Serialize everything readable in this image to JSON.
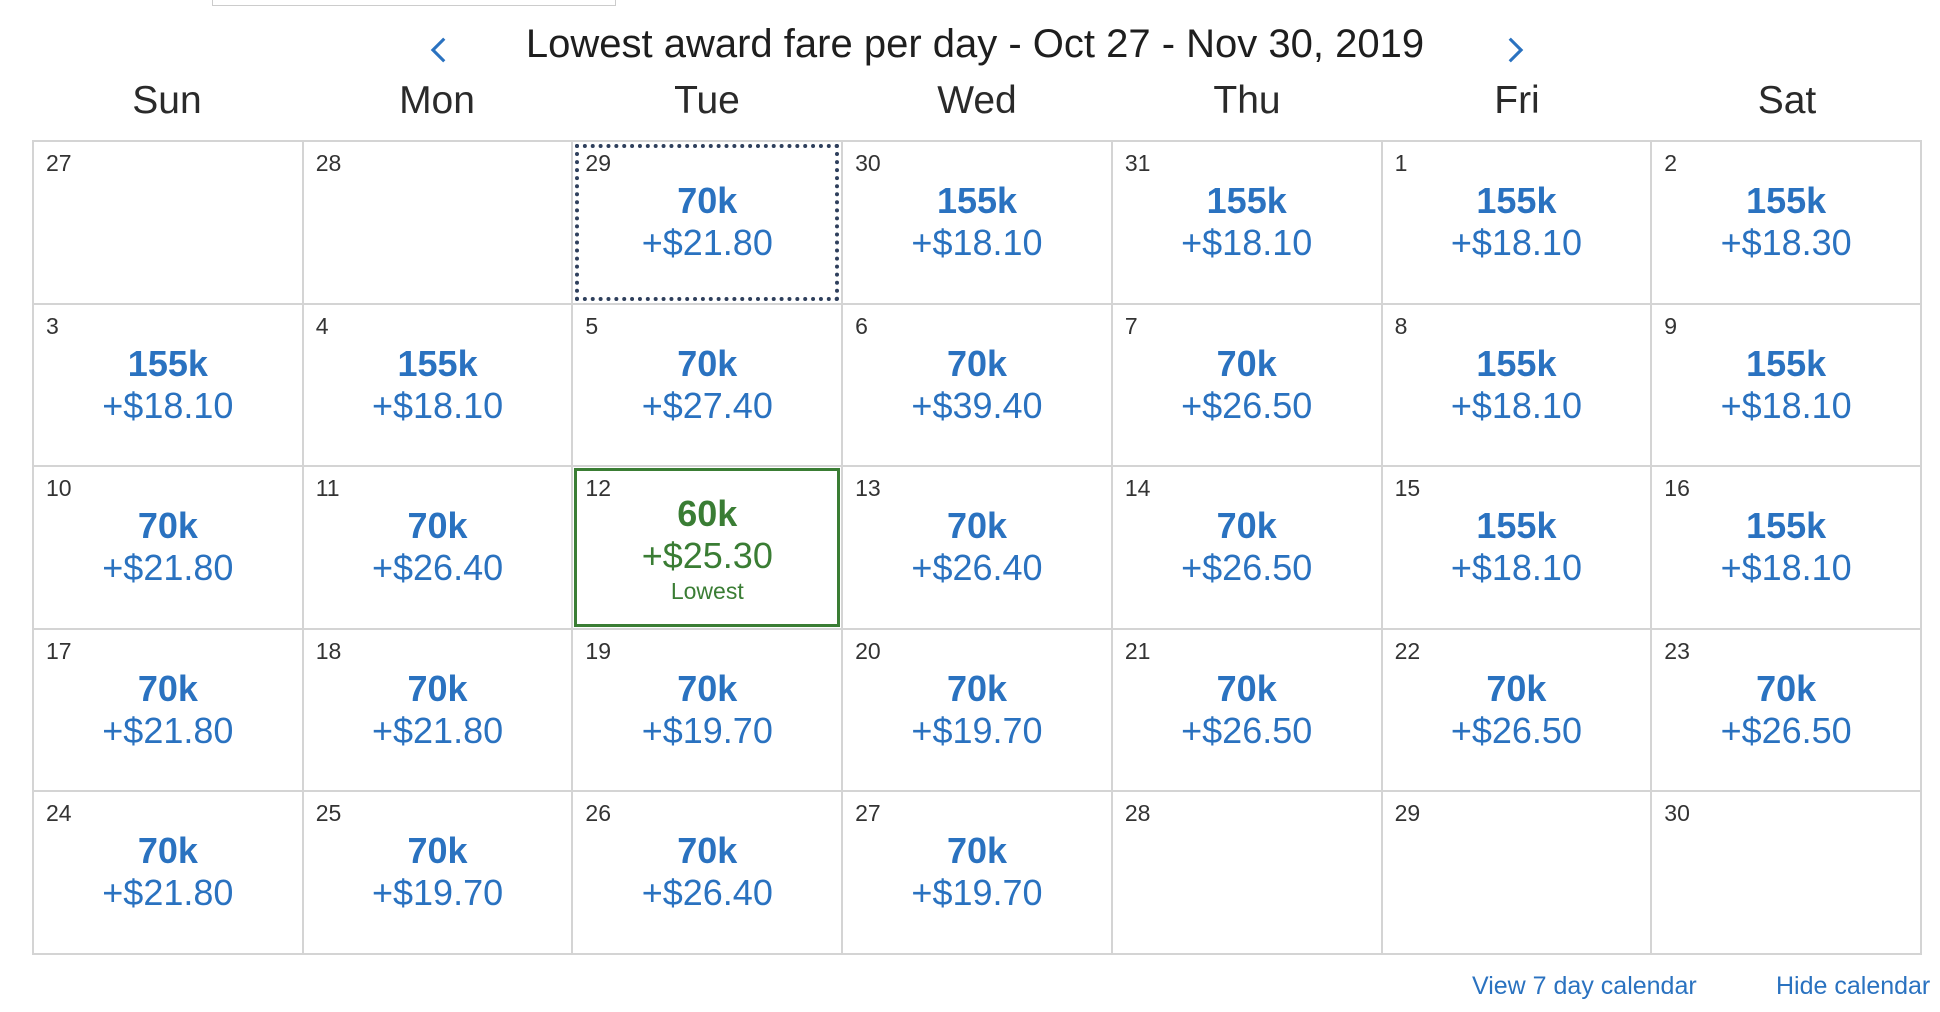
{
  "header": {
    "title": "Lowest award fare per day - Oct 27 - Nov 30, 2019",
    "prev_icon": "chevron-left-icon",
    "next_icon": "chevron-right-icon"
  },
  "weekdays": [
    "Sun",
    "Mon",
    "Tue",
    "Wed",
    "Thu",
    "Fri",
    "Sat"
  ],
  "lowest_label": "Lowest",
  "days": [
    {
      "day": "27",
      "miles": "",
      "tax": ""
    },
    {
      "day": "28",
      "miles": "",
      "tax": ""
    },
    {
      "day": "29",
      "miles": "70k",
      "tax": "+$21.80",
      "selected": true
    },
    {
      "day": "30",
      "miles": "155k",
      "tax": "+$18.10"
    },
    {
      "day": "31",
      "miles": "155k",
      "tax": "+$18.10"
    },
    {
      "day": "1",
      "miles": "155k",
      "tax": "+$18.10"
    },
    {
      "day": "2",
      "miles": "155k",
      "tax": "+$18.30"
    },
    {
      "day": "3",
      "miles": "155k",
      "tax": "+$18.10"
    },
    {
      "day": "4",
      "miles": "155k",
      "tax": "+$18.10"
    },
    {
      "day": "5",
      "miles": "70k",
      "tax": "+$27.40"
    },
    {
      "day": "6",
      "miles": "70k",
      "tax": "+$39.40"
    },
    {
      "day": "7",
      "miles": "70k",
      "tax": "+$26.50"
    },
    {
      "day": "8",
      "miles": "155k",
      "tax": "+$18.10"
    },
    {
      "day": "9",
      "miles": "155k",
      "tax": "+$18.10"
    },
    {
      "day": "10",
      "miles": "70k",
      "tax": "+$21.80"
    },
    {
      "day": "11",
      "miles": "70k",
      "tax": "+$26.40"
    },
    {
      "day": "12",
      "miles": "60k",
      "tax": "+$25.30",
      "lowest": true
    },
    {
      "day": "13",
      "miles": "70k",
      "tax": "+$26.40"
    },
    {
      "day": "14",
      "miles": "70k",
      "tax": "+$26.50"
    },
    {
      "day": "15",
      "miles": "155k",
      "tax": "+$18.10"
    },
    {
      "day": "16",
      "miles": "155k",
      "tax": "+$18.10"
    },
    {
      "day": "17",
      "miles": "70k",
      "tax": "+$21.80"
    },
    {
      "day": "18",
      "miles": "70k",
      "tax": "+$21.80"
    },
    {
      "day": "19",
      "miles": "70k",
      "tax": "+$19.70"
    },
    {
      "day": "20",
      "miles": "70k",
      "tax": "+$19.70"
    },
    {
      "day": "21",
      "miles": "70k",
      "tax": "+$26.50"
    },
    {
      "day": "22",
      "miles": "70k",
      "tax": "+$26.50"
    },
    {
      "day": "23",
      "miles": "70k",
      "tax": "+$26.50"
    },
    {
      "day": "24",
      "miles": "70k",
      "tax": "+$21.80"
    },
    {
      "day": "25",
      "miles": "70k",
      "tax": "+$19.70"
    },
    {
      "day": "26",
      "miles": "70k",
      "tax": "+$26.40"
    },
    {
      "day": "27",
      "miles": "70k",
      "tax": "+$19.70"
    },
    {
      "day": "28",
      "miles": "",
      "tax": ""
    },
    {
      "day": "29",
      "miles": "",
      "tax": ""
    },
    {
      "day": "30",
      "miles": "",
      "tax": ""
    }
  ],
  "footer": {
    "view_7_day": "View 7 day calendar",
    "hide_calendar": "Hide calendar"
  },
  "colors": {
    "fare_blue": "#2a72c0",
    "lowest_green": "#3a7d34",
    "grid_border": "#d4d4d4",
    "selected_border": "#2e3f5c"
  }
}
